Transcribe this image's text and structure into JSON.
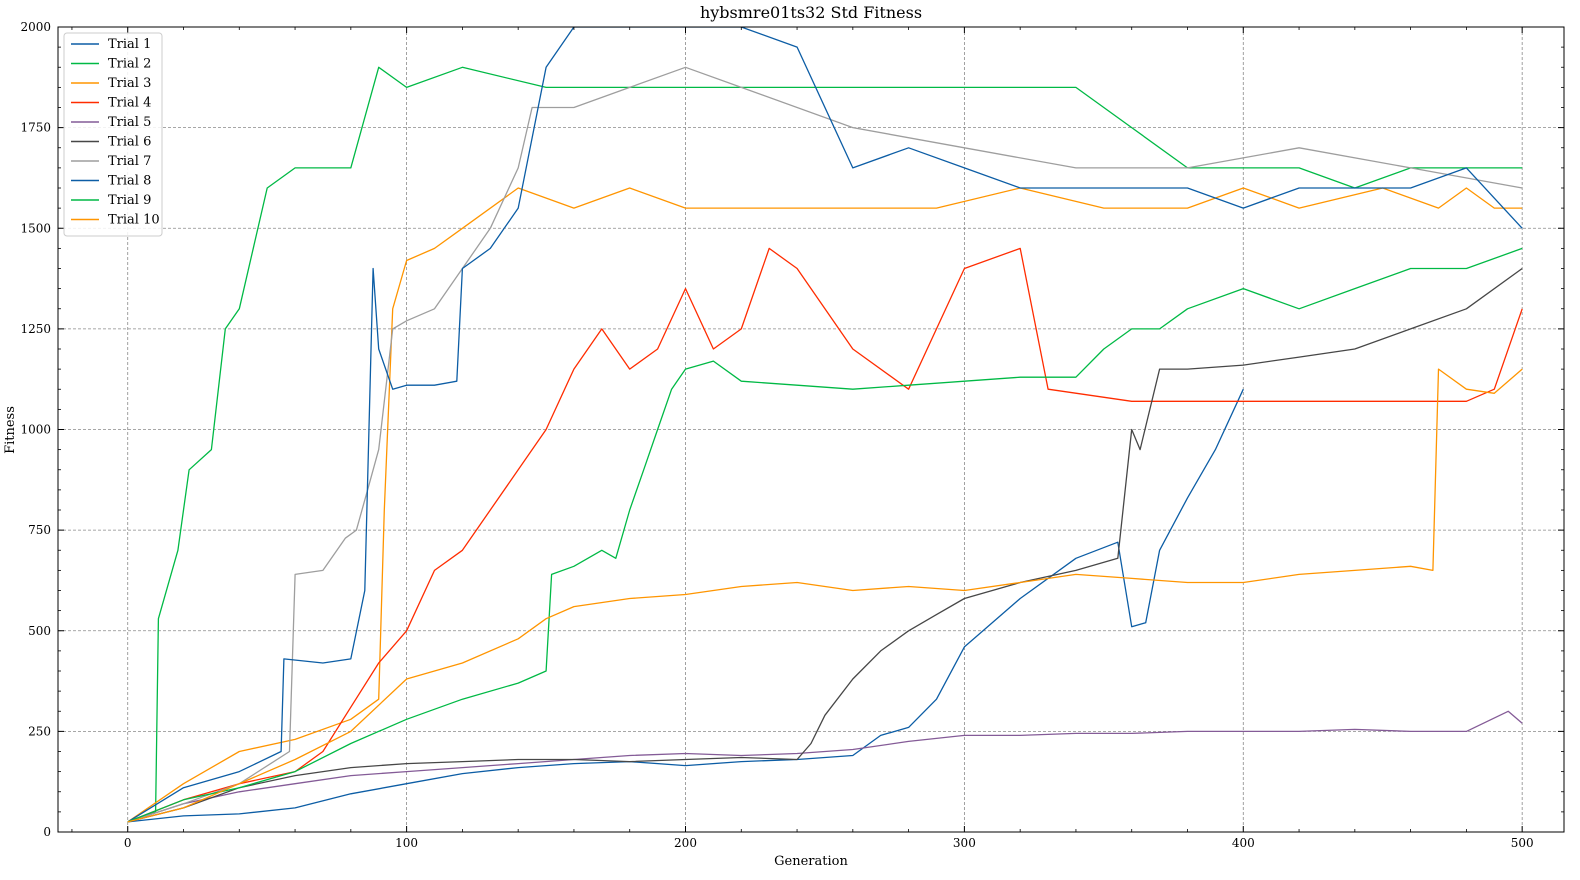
{
  "chart_data": {
    "type": "line",
    "title": "hybsmre01ts32 Std Fitness",
    "xlabel": "Generation",
    "ylabel": "Fitness",
    "xlim": [
      -25,
      515
    ],
    "ylim": [
      0,
      2000
    ],
    "xticks": [
      0,
      100,
      200,
      300,
      400,
      500
    ],
    "yticks": [
      0,
      250,
      500,
      750,
      1000,
      1250,
      1500,
      1750,
      2000
    ],
    "grid": true,
    "legend_position": "top-left",
    "series": [
      {
        "name": "Trial 1",
        "color": "#0C5DA5",
        "x": [
          0,
          20,
          40,
          60,
          80,
          100,
          120,
          140,
          160,
          180,
          200,
          220,
          240,
          260,
          270,
          280,
          290,
          300,
          320,
          340,
          355,
          360,
          365,
          370,
          380,
          390,
          400
        ],
        "y": [
          25,
          40,
          45,
          60,
          95,
          120,
          145,
          160,
          170,
          175,
          165,
          175,
          180,
          190,
          240,
          260,
          330,
          460,
          580,
          680,
          720,
          510,
          520,
          700,
          830,
          950,
          1100
        ]
      },
      {
        "name": "Trial 2",
        "color": "#00B945",
        "x": [
          0,
          10,
          11,
          18,
          22,
          30,
          35,
          40,
          50,
          60,
          80,
          90,
          100,
          120,
          150,
          200,
          220,
          250,
          280,
          300,
          320,
          340,
          360,
          380,
          400,
          420,
          440,
          460,
          480,
          500
        ],
        "y": [
          25,
          50,
          530,
          700,
          900,
          950,
          1250,
          1300,
          1600,
          1650,
          1650,
          1900,
          1850,
          1900,
          1850,
          1850,
          1850,
          1850,
          1850,
          1850,
          1850,
          1850,
          1750,
          1650,
          1650,
          1650,
          1600,
          1650,
          1650,
          1650
        ]
      },
      {
        "name": "Trial 3",
        "color": "#FF9500",
        "x": [
          0,
          20,
          40,
          60,
          80,
          90,
          92,
          95,
          100,
          110,
          120,
          140,
          160,
          180,
          200,
          230,
          260,
          290,
          320,
          350,
          380,
          400,
          420,
          450,
          470,
          480,
          490,
          500
        ],
        "y": [
          25,
          120,
          200,
          230,
          280,
          330,
          800,
          1300,
          1420,
          1450,
          1500,
          1600,
          1550,
          1600,
          1550,
          1550,
          1550,
          1550,
          1600,
          1550,
          1550,
          1600,
          1550,
          1600,
          1550,
          1600,
          1550,
          1550
        ]
      },
      {
        "name": "Trial 4",
        "color": "#FF2C00",
        "x": [
          0,
          20,
          40,
          60,
          70,
          80,
          90,
          100,
          110,
          120,
          130,
          140,
          150,
          160,
          170,
          180,
          190,
          200,
          210,
          220,
          230,
          240,
          260,
          280,
          300,
          320,
          330,
          360,
          400,
          440,
          480,
          490,
          500
        ],
        "y": [
          25,
          80,
          120,
          150,
          200,
          310,
          420,
          500,
          650,
          700,
          800,
          900,
          1000,
          1150,
          1250,
          1150,
          1200,
          1350,
          1200,
          1250,
          1450,
          1400,
          1200,
          1100,
          1400,
          1450,
          1100,
          1070,
          1070,
          1070,
          1070,
          1100,
          1300
        ]
      },
      {
        "name": "Trial 5",
        "color": "#845B97",
        "x": [
          0,
          20,
          40,
          60,
          80,
          100,
          120,
          140,
          160,
          180,
          200,
          220,
          240,
          260,
          280,
          300,
          320,
          340,
          360,
          380,
          400,
          420,
          440,
          460,
          480,
          495,
          500
        ],
        "y": [
          25,
          70,
          100,
          120,
          140,
          150,
          160,
          170,
          180,
          190,
          195,
          190,
          195,
          205,
          225,
          240,
          240,
          245,
          245,
          250,
          250,
          250,
          255,
          250,
          250,
          300,
          270
        ]
      },
      {
        "name": "Trial 6",
        "color": "#474747",
        "x": [
          0,
          20,
          40,
          60,
          80,
          100,
          120,
          140,
          160,
          180,
          200,
          220,
          240,
          245,
          250,
          260,
          270,
          280,
          290,
          300,
          320,
          340,
          355,
          360,
          363,
          370,
          380,
          400,
          420,
          440,
          460,
          480,
          500
        ],
        "y": [
          25,
          60,
          110,
          140,
          160,
          170,
          175,
          180,
          180,
          175,
          180,
          185,
          180,
          220,
          290,
          380,
          450,
          500,
          540,
          580,
          620,
          650,
          680,
          1000,
          950,
          1150,
          1150,
          1160,
          1180,
          1200,
          1250,
          1300,
          1400
        ]
      },
      {
        "name": "Trial 7",
        "color": "#9E9E9E",
        "x": [
          0,
          20,
          40,
          58,
          60,
          70,
          78,
          82,
          86,
          90,
          95,
          100,
          110,
          120,
          130,
          140,
          145,
          160,
          180,
          200,
          220,
          260,
          300,
          340,
          380,
          420,
          460,
          500
        ],
        "y": [
          25,
          70,
          120,
          200,
          640,
          650,
          730,
          750,
          850,
          950,
          1250,
          1270,
          1300,
          1400,
          1500,
          1650,
          1800,
          1800,
          1850,
          1900,
          1850,
          1750,
          1700,
          1650,
          1650,
          1700,
          1650,
          1600
        ]
      },
      {
        "name": "Trial 8",
        "color": "#0C5DA5",
        "x": [
          0,
          20,
          40,
          55,
          56,
          70,
          80,
          85,
          88,
          90,
          95,
          100,
          110,
          118,
          120,
          130,
          140,
          150,
          160,
          170,
          180,
          200,
          220,
          240,
          260,
          280,
          300,
          320,
          340,
          360,
          380,
          400,
          420,
          440,
          460,
          480,
          500
        ],
        "y": [
          25,
          110,
          150,
          200,
          430,
          420,
          430,
          600,
          1400,
          1200,
          1100,
          1110,
          1110,
          1120,
          1400,
          1450,
          1550,
          1900,
          2000,
          2000,
          2000,
          2000,
          2000,
          1950,
          1650,
          1700,
          1650,
          1600,
          1600,
          1600,
          1600,
          1550,
          1600,
          1600,
          1600,
          1650,
          1500
        ]
      },
      {
        "name": "Trial 9",
        "color": "#00B945",
        "x": [
          0,
          20,
          40,
          60,
          80,
          100,
          120,
          140,
          150,
          152,
          160,
          170,
          175,
          180,
          185,
          190,
          195,
          200,
          210,
          220,
          240,
          260,
          280,
          300,
          320,
          340,
          350,
          360,
          370,
          380,
          400,
          420,
          440,
          460,
          480,
          500
        ],
        "y": [
          25,
          80,
          110,
          150,
          220,
          280,
          330,
          370,
          400,
          640,
          660,
          700,
          680,
          800,
          900,
          1000,
          1100,
          1150,
          1170,
          1120,
          1110,
          1100,
          1110,
          1120,
          1130,
          1130,
          1200,
          1250,
          1250,
          1300,
          1350,
          1300,
          1350,
          1400,
          1400,
          1450
        ]
      },
      {
        "name": "Trial 10",
        "color": "#FF9500",
        "x": [
          0,
          20,
          40,
          60,
          80,
          100,
          120,
          140,
          150,
          160,
          180,
          200,
          220,
          240,
          260,
          280,
          300,
          320,
          340,
          360,
          380,
          400,
          420,
          440,
          460,
          468,
          470,
          480,
          490,
          500
        ],
        "y": [
          25,
          60,
          120,
          180,
          250,
          380,
          420,
          480,
          530,
          560,
          580,
          590,
          610,
          620,
          600,
          610,
          600,
          620,
          640,
          630,
          620,
          620,
          640,
          650,
          660,
          650,
          1150,
          1100,
          1090,
          1150
        ]
      }
    ]
  }
}
